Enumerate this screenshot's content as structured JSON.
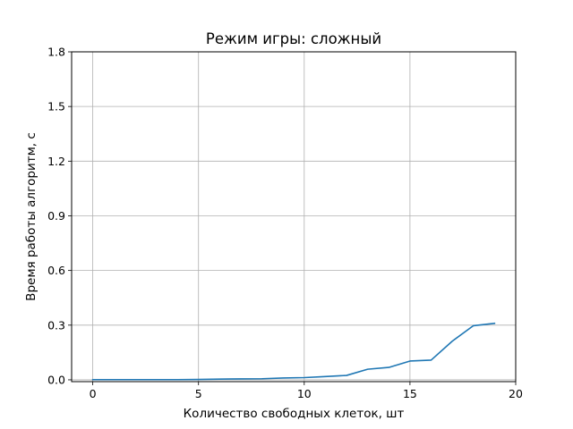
{
  "chart_data": {
    "type": "line",
    "title": "Режим игры: сложный",
    "xlabel": "Количество свободных клеток, шт",
    "ylabel": "Время работы алгоритм, с",
    "xlim": [
      -1,
      20
    ],
    "ylim": [
      -0.01,
      1.8
    ],
    "xticks": [
      0,
      5,
      10,
      15,
      20
    ],
    "xtick_labels": [
      "0",
      "5",
      "10",
      "15",
      "20"
    ],
    "yticks": [
      0.0,
      0.3,
      0.6,
      0.9,
      1.2,
      1.5,
      1.8
    ],
    "ytick_labels": [
      "0.0",
      "0.3",
      "0.6",
      "0.9",
      "1.2",
      "1.5",
      "1.8"
    ],
    "grid": true,
    "series": [
      {
        "color": "#1f77b4",
        "x": [
          0,
          1,
          2,
          3,
          4,
          5,
          6,
          7,
          8,
          9,
          10,
          11,
          12,
          13,
          14,
          15,
          16,
          17,
          18,
          19
        ],
        "y": [
          0.001,
          0.001,
          0.001,
          0.001,
          0.001,
          0.002,
          0.004,
          0.005,
          0.006,
          0.01,
          0.012,
          0.018,
          0.024,
          0.058,
          0.068,
          0.103,
          0.108,
          0.212,
          0.297,
          0.31
        ]
      }
    ]
  }
}
